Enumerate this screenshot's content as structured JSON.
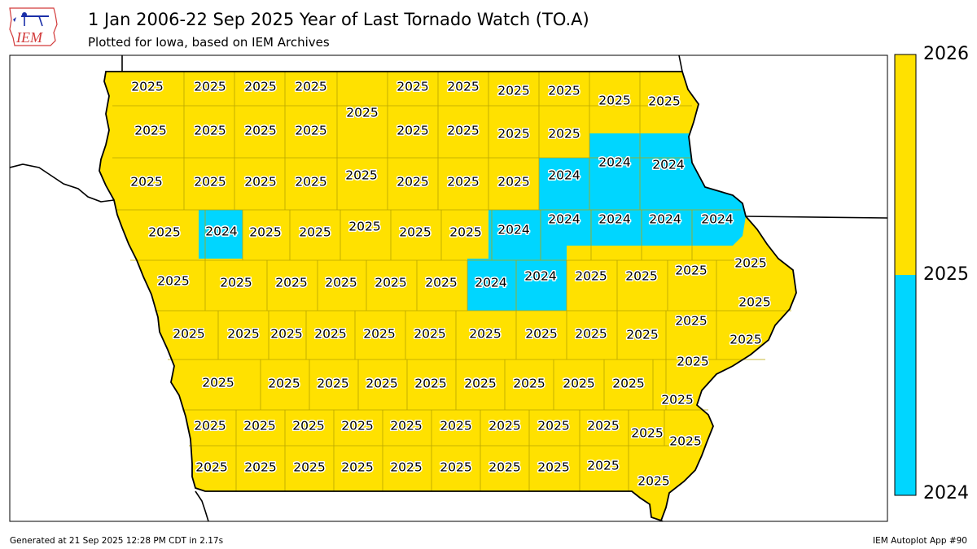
{
  "header": {
    "title": "1 Jan 2006-22 Sep 2025 Year of Last Tornado Watch (TO.A)",
    "subtitle": "Plotted for Iowa, based on IEM Archives",
    "logo_text": "IEM"
  },
  "colors": {
    "value_2025": "#FFE100",
    "value_2024": "#00D6FF",
    "county_border": "#B8A500",
    "state_border": "#000000"
  },
  "colorbar": {
    "levels": [
      "2024",
      "2025",
      "2026"
    ],
    "label_top": "2026",
    "label_mid": "2025",
    "label_bottom": "2024"
  },
  "map_data": {
    "values_2024": [
      "2024",
      "2024",
      "2024",
      "2024",
      "2024",
      "2024",
      "2024",
      "2024",
      "2024",
      "2024",
      "2024",
      "2024"
    ],
    "row_values": [
      [
        "2025",
        "2025",
        "2025",
        "2025",
        "2025",
        "2025",
        "2025",
        "2025",
        "2025",
        "2025",
        "2025",
        "2025"
      ],
      [
        "2025",
        "2025",
        "2025",
        "2025",
        "2025",
        "2025",
        "2025",
        "2025"
      ],
      [
        "2025",
        "2025",
        "2025",
        "2025",
        "2025",
        "2025",
        "2025",
        "2025"
      ],
      [
        "2025",
        "2025",
        "2025",
        "2025",
        "2025",
        "2025"
      ],
      [
        "2025",
        "2025",
        "2025",
        "2025",
        "2025",
        "2025",
        "2025",
        "2025",
        "2025",
        "2025"
      ],
      [
        "2025",
        "2025",
        "2025",
        "2025",
        "2025",
        "2025",
        "2025",
        "2025",
        "2025",
        "2025",
        "2025",
        "2025",
        "2025"
      ],
      [
        "2025",
        "2025",
        "2025",
        "2025",
        "2025",
        "2025",
        "2025",
        "2025",
        "2025",
        "2025",
        "2025"
      ],
      [
        "2025",
        "2025",
        "2025",
        "2025",
        "2025",
        "2025",
        "2025",
        "2025",
        "2025",
        "2025",
        "2025",
        "2025"
      ],
      [
        "2025",
        "2025",
        "2025",
        "2025",
        "2025",
        "2025",
        "2025",
        "2025",
        "2025",
        "2025",
        "2025",
        "2025"
      ]
    ]
  },
  "footer": {
    "generated": "Generated at 21 Sep 2025 12:28 PM CDT in 2.17s",
    "app": "IEM Autoplot App #90"
  }
}
